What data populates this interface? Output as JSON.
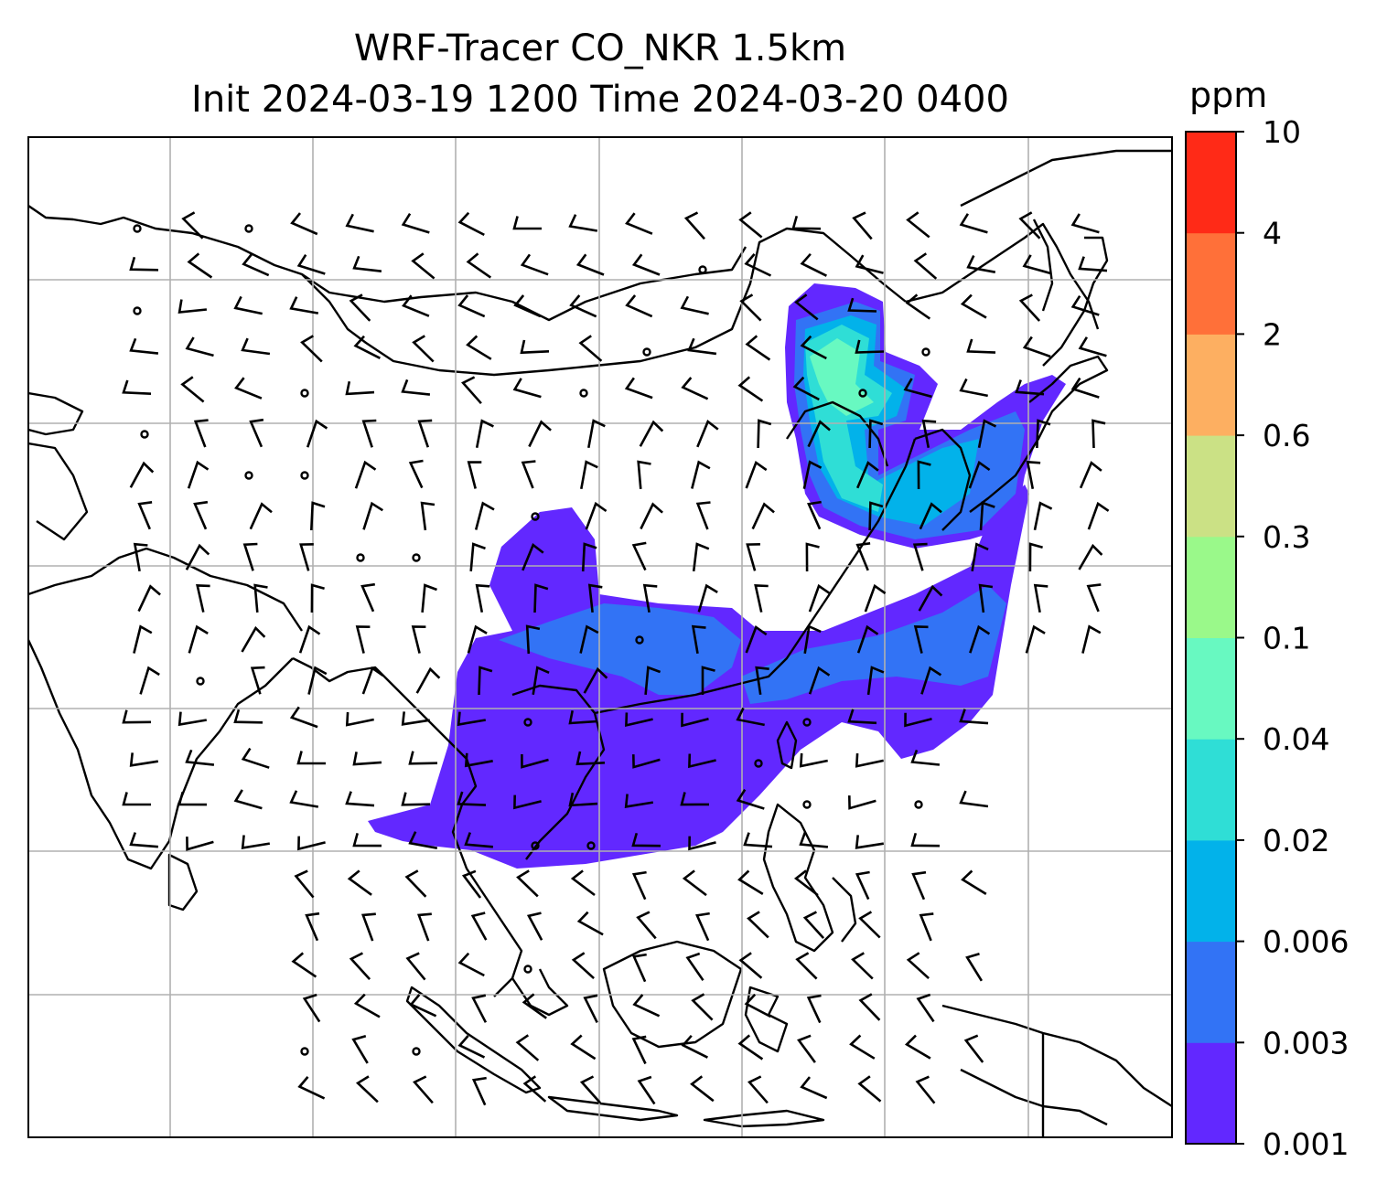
{
  "title": {
    "line1": "WRF-Tracer CO_NKR 1.5km",
    "line2": "Init 2024-03-19 1200 Time 2024-03-20 0400"
  },
  "colorbar": {
    "units": "ppm",
    "levels": [
      "0.001",
      "0.003",
      "0.006",
      "0.02",
      "0.04",
      "0.1",
      "0.3",
      "0.6",
      "2",
      "4",
      "10"
    ],
    "colors": [
      "#6228ff",
      "#3273f5",
      "#02b2ea",
      "#2fded6",
      "#68f9c1",
      "#9af98a",
      "#cbe185",
      "#fdaf61",
      "#ff7039",
      "#ff2a17"
    ]
  },
  "plume": {
    "colors": {
      "outer": "#6228ff",
      "mid": "#3273f5",
      "inner": "#02b2ea",
      "core": "#2fded6",
      "peak": "#68f9c1"
    }
  },
  "style": {
    "grid_color": "#b0b0b0",
    "coast_color": "#000000",
    "barb_color": "#000000"
  }
}
